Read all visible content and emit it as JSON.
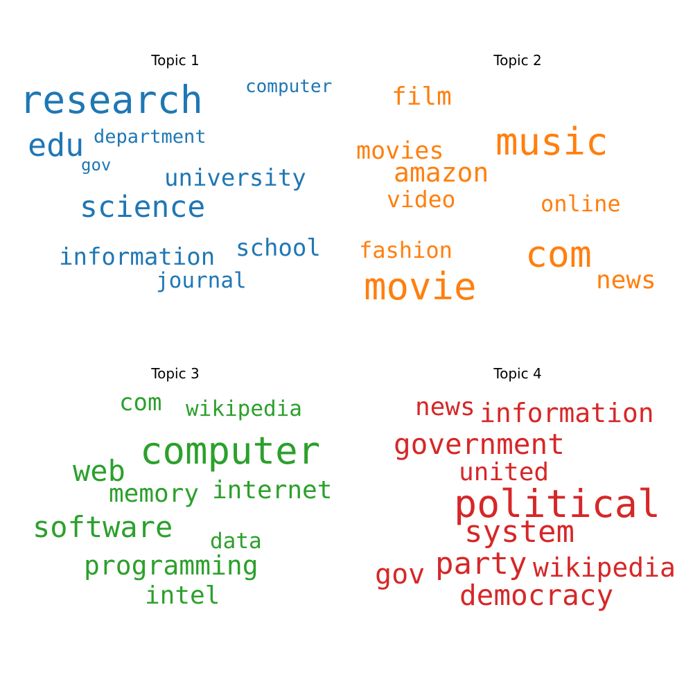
{
  "chart_data": [
    {
      "type": "wordcloud",
      "title": "Topic 1",
      "color": "#1f77b4",
      "words": [
        {
          "text": "research",
          "weight": 1.0
        },
        {
          "text": "science",
          "weight": 0.72
        },
        {
          "text": "edu",
          "weight": 0.7
        },
        {
          "text": "university",
          "weight": 0.55
        },
        {
          "text": "information",
          "weight": 0.55
        },
        {
          "text": "school",
          "weight": 0.5
        },
        {
          "text": "journal",
          "weight": 0.48
        },
        {
          "text": "department",
          "weight": 0.4
        },
        {
          "text": "computer",
          "weight": 0.38
        },
        {
          "text": "gov",
          "weight": 0.35
        }
      ]
    },
    {
      "type": "wordcloud",
      "title": "Topic 2",
      "color": "#ff7f0e",
      "words": [
        {
          "text": "movie",
          "weight": 1.0
        },
        {
          "text": "music",
          "weight": 0.98
        },
        {
          "text": "com",
          "weight": 0.96
        },
        {
          "text": "amazon",
          "weight": 0.66
        },
        {
          "text": "film",
          "weight": 0.62
        },
        {
          "text": "movies",
          "weight": 0.6
        },
        {
          "text": "news",
          "weight": 0.6
        },
        {
          "text": "video",
          "weight": 0.58
        },
        {
          "text": "online",
          "weight": 0.54
        },
        {
          "text": "fashion",
          "weight": 0.54
        }
      ]
    },
    {
      "type": "wordcloud",
      "title": "Topic 3",
      "color": "#2ca02c",
      "words": [
        {
          "text": "computer",
          "weight": 1.0
        },
        {
          "text": "software",
          "weight": 0.8
        },
        {
          "text": "web",
          "weight": 0.78
        },
        {
          "text": "programming",
          "weight": 0.7
        },
        {
          "text": "internet",
          "weight": 0.66
        },
        {
          "text": "memory",
          "weight": 0.62
        },
        {
          "text": "intel",
          "weight": 0.6
        },
        {
          "text": "com",
          "weight": 0.58
        },
        {
          "text": "wikipedia",
          "weight": 0.56
        },
        {
          "text": "data",
          "weight": 0.55
        }
      ]
    },
    {
      "type": "wordcloud",
      "title": "Topic 4",
      "color": "#d62728",
      "words": [
        {
          "text": "political",
          "weight": 1.0
        },
        {
          "text": "system",
          "weight": 0.8
        },
        {
          "text": "party",
          "weight": 0.8
        },
        {
          "text": "government",
          "weight": 0.76
        },
        {
          "text": "democracy",
          "weight": 0.72
        },
        {
          "text": "gov",
          "weight": 0.72
        },
        {
          "text": "information",
          "weight": 0.7
        },
        {
          "text": "wikipedia",
          "weight": 0.68
        },
        {
          "text": "news",
          "weight": 0.66
        },
        {
          "text": "united",
          "weight": 0.65
        }
      ]
    }
  ]
}
